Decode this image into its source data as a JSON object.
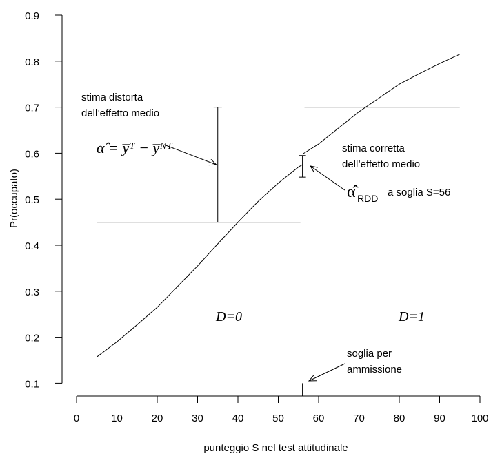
{
  "chart_data": {
    "type": "line",
    "xlabel": "punteggio S nel test attitudinale",
    "ylabel": "Pr(occupato)",
    "xlim": [
      0,
      100
    ],
    "ylim": [
      0.1,
      0.9
    ],
    "x_ticks": [
      0,
      10,
      20,
      30,
      40,
      50,
      60,
      70,
      80,
      90,
      100
    ],
    "x_tick_labels": [
      "0",
      "10",
      "20",
      "30",
      "40",
      "50",
      "60",
      "70",
      "80",
      "90",
      "100"
    ],
    "y_ticks": [
      0.1,
      0.2,
      0.3,
      0.4,
      0.5,
      0.6,
      0.7,
      0.8,
      0.9
    ],
    "y_tick_labels": [
      "0.1",
      "0.2",
      "0.3",
      "0.4",
      "0.5",
      "0.6",
      "0.7",
      "0.8",
      "0.9"
    ],
    "grid": false,
    "threshold": 56,
    "series": [
      {
        "name": "",
        "x": [
          5,
          10,
          15,
          20,
          25,
          30,
          35,
          40,
          45,
          50,
          55,
          56
        ],
        "y": [
          0.157,
          0.19,
          0.227,
          0.265,
          0.31,
          0.355,
          0.403,
          0.45,
          0.495,
          0.535,
          0.57,
          0.575
        ]
      },
      {
        "name": "",
        "x": [
          56,
          60,
          65,
          70,
          75,
          80,
          85,
          90,
          95
        ],
        "y": [
          0.598,
          0.62,
          0.655,
          0.69,
          0.72,
          0.75,
          0.773,
          0.795,
          0.815
        ]
      }
    ],
    "mean_untreated": 0.45,
    "mean_treated": 0.7,
    "biased_estimate_x": 35,
    "rdd_jump": [
      0.548,
      0.595
    ],
    "annotations": {
      "biased_title_line1": "stima distorta",
      "biased_title_line2": "dell’effetto medio",
      "biased_formula": "α̂ = y̅ᵀ − y̅ᴺᵀ",
      "corrected_line1": "stima corretta",
      "corrected_line2": "dell’effetto medio",
      "rdd_symbol": "α̂",
      "rdd_subscript": "RDD",
      "rdd_threshold": "a soglia S=56",
      "region_left": "D=0",
      "region_right": "D=1",
      "threshold_line1": "soglia per",
      "threshold_line2": "ammissione"
    }
  }
}
